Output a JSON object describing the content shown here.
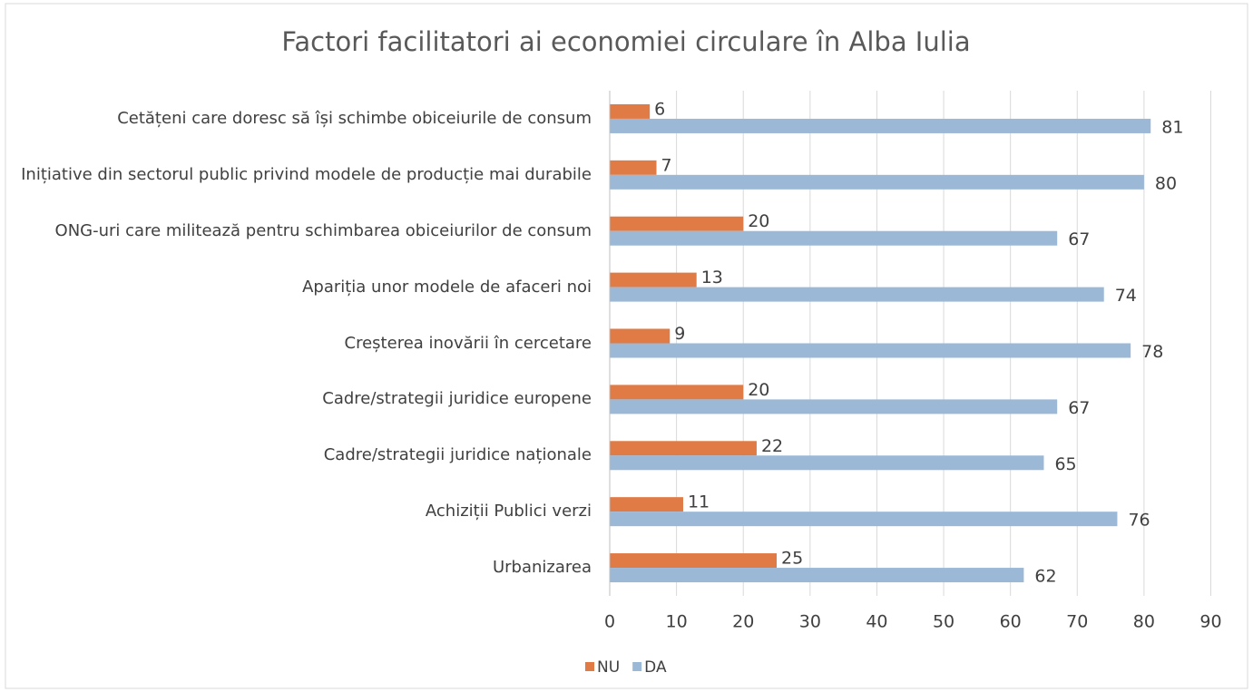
{
  "chart_data": {
    "type": "bar",
    "orientation": "horizontal",
    "title": "Factori facilitatori ai economiei circulare în Alba Iulia",
    "categories": [
      "Cetățeni care doresc să își schimbe obiceiurile de consum",
      "Inițiative din sectorul public privind modele de producție mai durabile",
      "ONG-uri care militează pentru schimbarea obiceiurilor de consum",
      "Apariția unor modele de afaceri noi",
      "Creșterea inovării în cercetare",
      "Cadre/strategii juridice europene",
      "Cadre/strategii juridice naționale",
      "Achiziții Publici verzi",
      "Urbanizarea"
    ],
    "series": [
      {
        "name": "NU",
        "color": "#e07b46",
        "values": [
          6,
          7,
          20,
          13,
          9,
          20,
          22,
          11,
          25
        ]
      },
      {
        "name": "DA",
        "color": "#9bb8d7",
        "values": [
          81,
          80,
          67,
          74,
          78,
          67,
          65,
          76,
          62
        ]
      }
    ],
    "xlim": [
      0,
      90
    ],
    "xticks": [
      0,
      10,
      20,
      30,
      40,
      50,
      60,
      70,
      80,
      90
    ],
    "grid": true,
    "legend": "bottom"
  }
}
